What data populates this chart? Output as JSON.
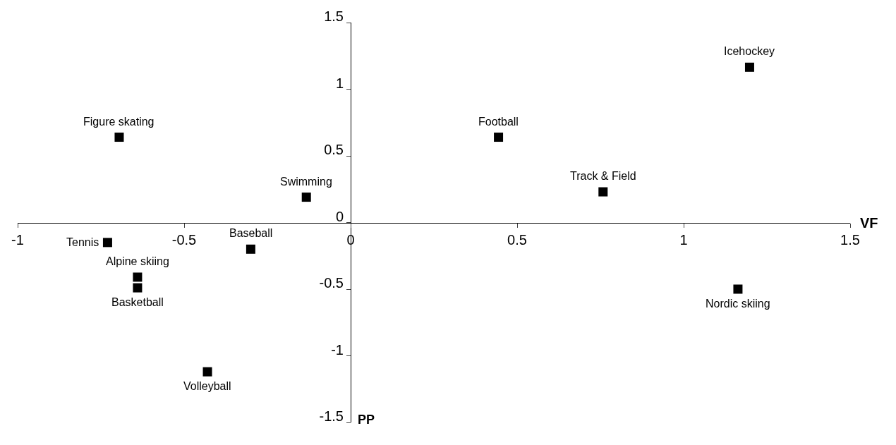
{
  "chart_data": {
    "type": "scatter",
    "xlabel": "VF",
    "ylabel": "PP",
    "x": [
      -0.695,
      -0.133,
      -0.73,
      -0.3,
      -0.64,
      -0.64,
      -0.43,
      0.444,
      0.758,
      1.198,
      1.163
    ],
    "series": [
      {
        "color": "#000000",
        "values": [
          0.64,
          0.19,
          -0.15,
          -0.2,
          -0.41,
          -0.49,
          -1.12,
          0.64,
          0.23,
          1.165,
          -0.5
        ]
      }
    ],
    "annotations": [
      {
        "text": "Figure skating",
        "x": -0.695,
        "y": 0.64
      },
      {
        "text": "Swimming",
        "x": -0.133,
        "y": 0.19
      },
      {
        "text": "Tennis",
        "x": -0.73,
        "y": -0.15
      },
      {
        "text": "Baseball",
        "x": -0.3,
        "y": -0.2
      },
      {
        "text": "Alpine skiing",
        "x": -0.64,
        "y": -0.41
      },
      {
        "text": "Basketball",
        "x": -0.64,
        "y": -0.49
      },
      {
        "text": "Volleyball",
        "x": -0.43,
        "y": -1.12
      },
      {
        "text": "Football",
        "x": 0.444,
        "y": 0.64
      },
      {
        "text": "Track & Field",
        "x": 0.758,
        "y": 0.23
      },
      {
        "text": "Icehockey",
        "x": 1.198,
        "y": 1.165
      },
      {
        "text": "Nordic skiing",
        "x": 1.163,
        "y": -0.5
      }
    ],
    "xlim": [
      -1,
      1.5
    ],
    "ylim": [
      -1.5,
      1.5
    ],
    "xticks": [
      -1,
      -0.5,
      0,
      0.5,
      1,
      1.5
    ],
    "yticks": [
      -1.5,
      -1,
      -0.5,
      0,
      0.5,
      1,
      1.5
    ],
    "marker": "square"
  }
}
